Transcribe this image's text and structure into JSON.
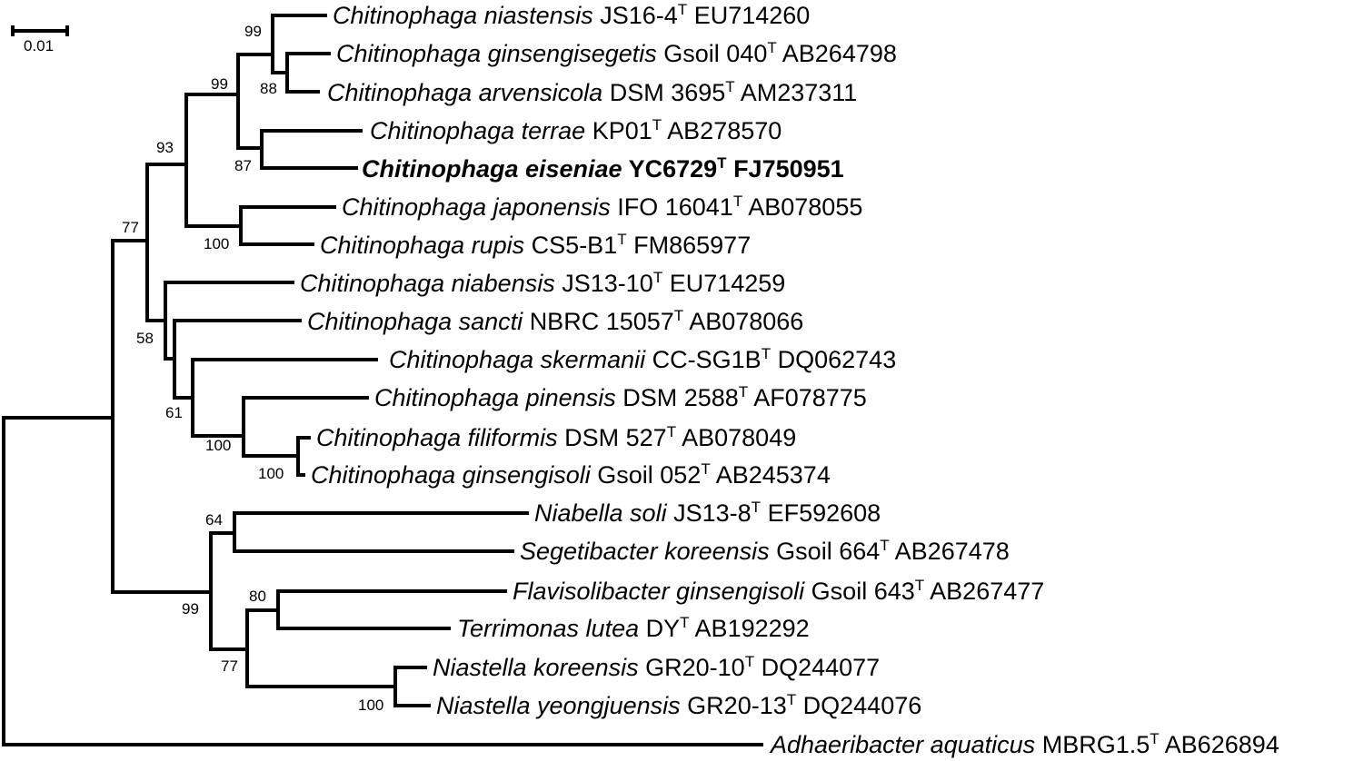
{
  "scale": {
    "label": "0.01"
  },
  "taxa": [
    {
      "genus_species": "Chitinophaga niastensis",
      "strain": "JS16-4",
      "sup": "T",
      "accession": "EU714260",
      "bold": false
    },
    {
      "genus_species": "Chitinophaga ginsengisegetis",
      "strain": "Gsoil 040",
      "sup": "T",
      "accession": "AB264798",
      "bold": false
    },
    {
      "genus_species": "Chitinophaga arvensicola",
      "strain": "DSM 3695",
      "sup": "T",
      "accession": "AM237311",
      "bold": false
    },
    {
      "genus_species": "Chitinophaga terrae",
      "strain": "KP01",
      "sup": "T",
      "accession": "AB278570",
      "bold": false
    },
    {
      "genus_species": "Chitinophaga eiseniae",
      "strain": "YC6729",
      "sup": "T",
      "accession": "FJ750951",
      "bold": true
    },
    {
      "genus_species": "Chitinophaga japonensis",
      "strain": "IFO 16041",
      "sup": "T",
      "accession": "AB078055",
      "bold": false
    },
    {
      "genus_species": "Chitinophaga rupis",
      "strain": "CS5-B1",
      "sup": "T",
      "accession": "FM865977",
      "bold": false
    },
    {
      "genus_species": "Chitinophaga niabensis",
      "strain": "JS13-10",
      "sup": "T",
      "accession": "EU714259",
      "bold": false
    },
    {
      "genus_species": "Chitinophaga sancti",
      "strain": "NBRC 15057",
      "sup": "T",
      "accession": "AB078066",
      "bold": false
    },
    {
      "genus_species": "Chitinophaga skermanii",
      "strain": "CC-SG1B",
      "sup": "T",
      "accession": "DQ062743",
      "bold": false
    },
    {
      "genus_species": "Chitinophaga pinensis",
      "strain": "DSM 2588",
      "sup": "T",
      "accession": "AF078775",
      "bold": false
    },
    {
      "genus_species": "Chitinophaga filiformis",
      "strain": "DSM 527",
      "sup": "T",
      "accession": "AB078049",
      "bold": false
    },
    {
      "genus_species": "Chitinophaga ginsengisoli",
      "strain": "Gsoil 052",
      "sup": "T",
      "accession": "AB245374",
      "bold": false
    },
    {
      "genus_species": "Niabella soli",
      "strain": "JS13-8",
      "sup": "T",
      "accession": "EF592608",
      "bold": false
    },
    {
      "genus_species": "Segetibacter koreensis",
      "strain": "Gsoil 664",
      "sup": "T",
      "accession": "AB267478",
      "bold": false
    },
    {
      "genus_species": "Flavisolibacter ginsengisoli",
      "strain": "Gsoil 643",
      "sup": "T",
      "accession": "AB267477",
      "bold": false
    },
    {
      "genus_species": "Terrimonas lutea",
      "strain": "DY",
      "sup": "T",
      "accession": "AB192292",
      "bold": false
    },
    {
      "genus_species": "Niastella koreensis",
      "strain": "GR20-10",
      "sup": "T",
      "accession": "DQ244077",
      "bold": false
    },
    {
      "genus_species": "Niastella yeongjuensis",
      "strain": "GR20-13",
      "sup": "T",
      "accession": "DQ244076",
      "bold": false
    },
    {
      "genus_species": "Adhaeribacter aquaticus",
      "strain": "MBRG1.5",
      "sup": "T",
      "accession": "AB626894",
      "bold": false
    }
  ],
  "bootstrap": [
    "99",
    "88",
    "99",
    "87",
    "93",
    "100",
    "77",
    "58",
    "61",
    "100",
    "100",
    "64",
    "99",
    "80",
    "77",
    "100"
  ]
}
